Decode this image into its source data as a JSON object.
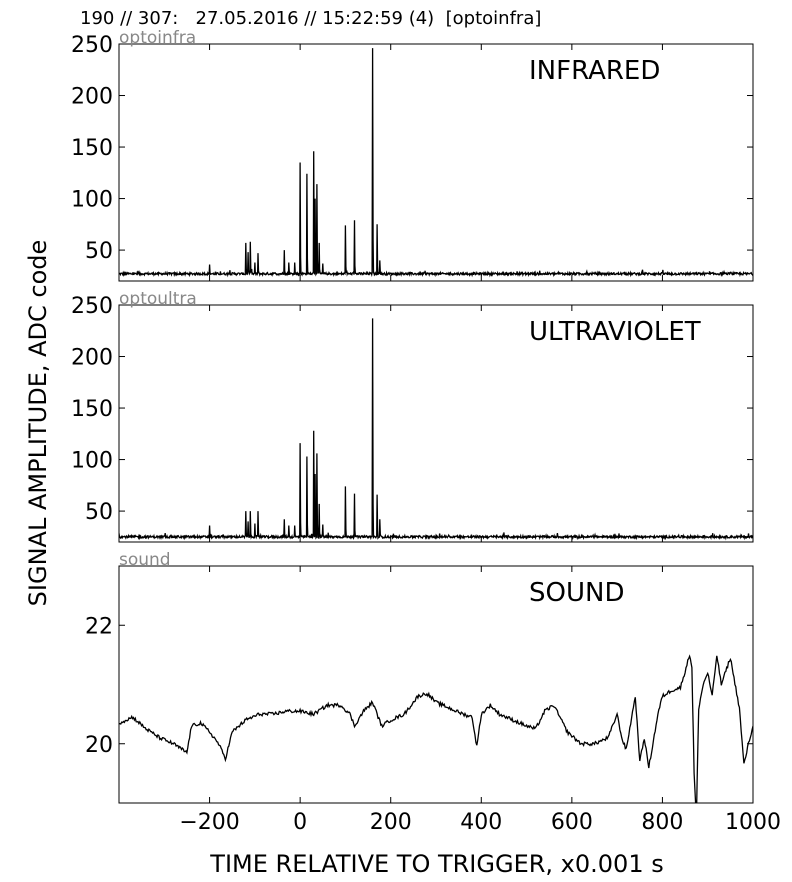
{
  "figure": {
    "title": "190 // 307:   27.05.2016 // 15:22:59 (4)  [optoinfra]",
    "ylabel": "SIGNAL AMPLITUDE,  ADC code",
    "xlabel": "TIME RELATIVE TO TRIGGER,   x0.001 s"
  },
  "chart_data": [
    {
      "type": "line",
      "tag": "optoinfra",
      "label": "INFRARED",
      "xlim": [
        -400,
        1000
      ],
      "ylim": [
        20,
        250
      ],
      "yticks": [
        50,
        100,
        150,
        200,
        250
      ],
      "baseline": 27,
      "spikes": [
        [
          -200,
          36
        ],
        [
          -120,
          57
        ],
        [
          -115,
          48
        ],
        [
          -110,
          58
        ],
        [
          -100,
          38
        ],
        [
          -93,
          47
        ],
        [
          -35,
          50
        ],
        [
          -25,
          38
        ],
        [
          -12,
          38
        ],
        [
          0,
          135
        ],
        [
          15,
          124
        ],
        [
          30,
          146
        ],
        [
          33,
          100
        ],
        [
          37,
          114
        ],
        [
          42,
          57
        ],
        [
          50,
          37
        ],
        [
          100,
          74
        ],
        [
          120,
          79
        ],
        [
          160,
          246
        ],
        [
          170,
          75
        ],
        [
          176,
          40
        ]
      ]
    },
    {
      "type": "line",
      "tag": "optoultra",
      "label": "ULTRAVIOLET",
      "xlim": [
        -400,
        1000
      ],
      "ylim": [
        20,
        250
      ],
      "yticks": [
        50,
        100,
        150,
        200,
        250
      ],
      "baseline": 25,
      "spikes": [
        [
          -200,
          36
        ],
        [
          -120,
          50
        ],
        [
          -115,
          40
        ],
        [
          -110,
          50
        ],
        [
          -100,
          38
        ],
        [
          -93,
          50
        ],
        [
          -35,
          42
        ],
        [
          -25,
          36
        ],
        [
          -12,
          36
        ],
        [
          0,
          116
        ],
        [
          15,
          103
        ],
        [
          30,
          128
        ],
        [
          33,
          86
        ],
        [
          37,
          106
        ],
        [
          42,
          57
        ],
        [
          50,
          37
        ],
        [
          100,
          74
        ],
        [
          120,
          67
        ],
        [
          160,
          237
        ],
        [
          170,
          66
        ],
        [
          176,
          42
        ]
      ]
    },
    {
      "type": "line",
      "tag": "sound",
      "label": "SOUND",
      "xlim": [
        -400,
        1000
      ],
      "ylim": [
        19,
        23
      ],
      "yticks": [
        20,
        22
      ],
      "x": [
        -400,
        -370,
        -340,
        -310,
        -280,
        -250,
        -240,
        -220,
        -200,
        -180,
        -165,
        -150,
        -120,
        -90,
        -60,
        -30,
        0,
        30,
        60,
        90,
        110,
        120,
        140,
        160,
        180,
        200,
        230,
        260,
        280,
        300,
        330,
        360,
        380,
        390,
        400,
        420,
        440,
        470,
        500,
        520,
        540,
        560,
        590,
        620,
        650,
        680,
        700,
        710,
        720,
        740,
        750,
        760,
        770,
        790,
        800,
        820,
        840,
        860,
        865,
        870,
        875,
        880,
        890,
        900,
        910,
        920,
        930,
        950,
        970,
        980,
        990,
        1000
      ],
      "y": [
        20.35,
        20.45,
        20.25,
        20.1,
        20.0,
        19.85,
        20.3,
        20.35,
        20.2,
        20.0,
        19.75,
        20.2,
        20.4,
        20.5,
        20.5,
        20.55,
        20.55,
        20.5,
        20.65,
        20.65,
        20.5,
        20.3,
        20.55,
        20.7,
        20.3,
        20.4,
        20.5,
        20.8,
        20.85,
        20.7,
        20.6,
        20.5,
        20.45,
        19.95,
        20.5,
        20.65,
        20.5,
        20.4,
        20.3,
        20.25,
        20.55,
        20.65,
        20.2,
        20.0,
        20.0,
        20.1,
        20.5,
        20.1,
        19.9,
        20.8,
        19.7,
        20.1,
        19.6,
        20.5,
        20.8,
        20.9,
        20.95,
        21.5,
        21.3,
        19.5,
        18.7,
        20.6,
        21.0,
        21.2,
        20.8,
        21.5,
        21.0,
        21.45,
        20.6,
        19.65,
        20.0,
        20.3
      ]
    }
  ],
  "xaxis": {
    "ticks": [
      -200,
      0,
      200,
      400,
      600,
      800,
      1000
    ],
    "tick_labels": [
      "−200",
      "0",
      "200",
      "400",
      "600",
      "800",
      "1000"
    ]
  }
}
